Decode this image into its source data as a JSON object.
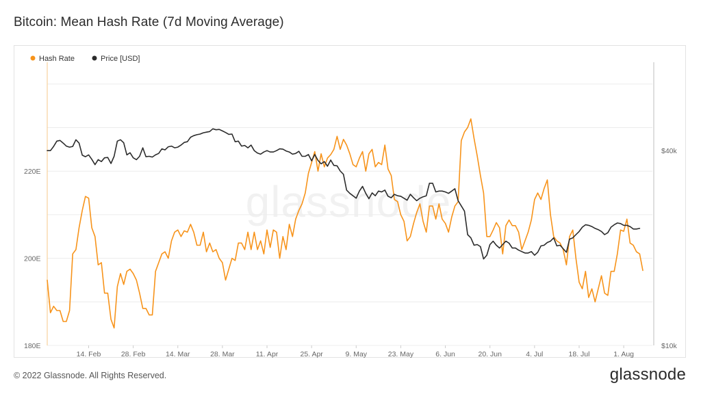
{
  "page": {
    "footer": "© 2022 Glassnode. All Rights Reserved.",
    "brand": "glassnode",
    "watermark": "glassnode"
  },
  "colors": {
    "hash_rate": "#f7931a",
    "price": "#2b2b2b",
    "grid": "#ececec",
    "axis_text": "#666666"
  },
  "chart_data": {
    "type": "line",
    "title": "Bitcoin: Mean Hash Rate (7d Moving Average)",
    "x_ticks": [
      "14. Feb",
      "28. Feb",
      "14. Mar",
      "28. Mar",
      "11. Apr",
      "25. Apr",
      "9. May",
      "23. May",
      "6. Jun",
      "20. Jun",
      "4. Jul",
      "18. Jul",
      "1. Aug"
    ],
    "x_start": "2022-02-01",
    "x_days": 190,
    "x_tick_offsets_days": [
      13,
      27,
      41,
      55,
      69,
      83,
      97,
      111,
      125,
      139,
      153,
      167,
      181
    ],
    "y_left": {
      "label": "Hash Rate",
      "ticks": [
        180,
        200,
        220
      ],
      "tick_labels": [
        "180E",
        "200E",
        "220E"
      ],
      "range": [
        180,
        245
      ]
    },
    "y_right": {
      "label": "Price [USD]",
      "ticks": [
        10000,
        40000
      ],
      "tick_labels": [
        "$10k",
        "$40k"
      ],
      "scale": "log",
      "range": [
        10000,
        75000
      ]
    },
    "legend": {
      "position": "top-left",
      "entries": [
        "Hash Rate",
        "Price [USD]"
      ]
    },
    "series": [
      {
        "name": "Hash Rate",
        "axis": "left",
        "step_days": 1,
        "values": [
          195,
          187.5,
          189,
          188,
          188,
          185.5,
          185.5,
          188,
          201,
          202,
          207,
          211,
          214.2,
          213.8,
          207,
          205,
          198.5,
          199,
          192,
          192,
          186,
          184,
          193.5,
          196.5,
          194,
          197,
          197.5,
          196.5,
          195,
          192,
          188.5,
          188.5,
          187,
          187,
          197,
          199,
          201,
          201.5,
          200,
          204,
          206,
          206.5,
          205,
          206.3,
          206,
          207.8,
          206,
          203,
          203,
          206,
          201.5,
          203.5,
          201.5,
          202,
          200,
          199,
          195,
          197.5,
          200,
          199.5,
          203.5,
          203.5,
          202,
          206,
          202,
          206,
          202,
          204,
          201,
          206.5,
          202.5,
          206.5,
          206,
          200,
          205,
          202,
          207.8,
          205,
          209,
          211,
          212.5,
          215,
          219.5,
          222,
          224.5,
          220,
          224,
          221,
          223,
          223.8,
          225,
          228,
          225,
          227.3,
          226,
          224,
          221.5,
          221,
          223,
          224.5,
          220,
          224,
          225,
          221,
          222,
          221.5,
          226,
          220.5,
          219,
          213.5,
          213,
          210,
          208.5,
          204,
          205,
          208,
          210.5,
          212.5,
          208.5,
          206,
          212,
          212,
          209,
          212.5,
          209,
          208,
          206,
          209.5,
          212,
          213,
          227,
          229,
          230,
          232,
          227.5,
          223.5,
          219,
          215,
          205,
          205,
          206.5,
          208.2,
          207,
          201,
          207.5,
          208.8,
          207.5,
          207.5,
          206,
          202,
          204,
          206,
          208.8,
          213.5,
          215,
          213.5,
          216,
          218,
          210,
          205,
          204,
          203.5,
          202,
          198.5,
          205,
          206.5,
          200,
          194.5,
          193,
          197,
          191,
          193,
          190,
          193,
          196,
          192,
          191.5,
          197,
          197,
          201,
          206.5,
          206.2,
          209,
          203.5,
          203,
          201.5,
          201,
          197.2
        ]
      },
      {
        "name": "Price [USD]",
        "axis": "right",
        "step_days": 1,
        "values": [
          40000,
          40000,
          41200,
          42800,
          43000,
          42200,
          41300,
          41000,
          41200,
          43200,
          42200,
          38700,
          38300,
          38800,
          37600,
          36200,
          37500,
          37000,
          38000,
          38100,
          36500,
          38400,
          42800,
          43200,
          42300,
          38800,
          39400,
          38000,
          37500,
          38400,
          40800,
          38300,
          38400,
          38200,
          38800,
          39200,
          40500,
          40200,
          41100,
          41300,
          40800,
          41000,
          41600,
          42400,
          42600,
          44000,
          44500,
          44800,
          45000,
          45400,
          45600,
          45800,
          46700,
          46400,
          46500,
          46000,
          45500,
          44900,
          45000,
          42600,
          42800,
          41300,
          41500,
          40800,
          41600,
          40000,
          39300,
          39000,
          39600,
          40000,
          39600,
          39600,
          40000,
          40500,
          40400,
          39900,
          39600,
          39000,
          39200,
          39800,
          38400,
          38400,
          38900,
          37200,
          38900,
          37300,
          36400,
          37000,
          35800,
          37400,
          36000,
          35900,
          34600,
          33800,
          30200,
          29500,
          29000,
          28500,
          30000,
          31000,
          29500,
          28400,
          29600,
          29000,
          30000,
          29800,
          30200,
          28900,
          28600,
          29300,
          29000,
          28900,
          28500,
          28100,
          29300,
          28600,
          28000,
          28500,
          28800,
          29000,
          31700,
          31700,
          29800,
          30000,
          30000,
          29800,
          29500,
          30000,
          30500,
          28000,
          27000,
          26000,
          22000,
          21500,
          20400,
          20500,
          20200,
          18500,
          19000,
          20500,
          21000,
          20400,
          20000,
          20500,
          21000,
          20700,
          20000,
          20000,
          19700,
          19500,
          19300,
          19300,
          19500,
          19000,
          19400,
          20300,
          20400,
          20800,
          21000,
          21500,
          20300,
          20400,
          19900,
          19400,
          21300,
          21500,
          22000,
          22500,
          23200,
          23600,
          23500,
          23300,
          23000,
          22800,
          22500,
          22000,
          22300,
          23200,
          23600,
          23900,
          23800,
          23500,
          23500,
          23300,
          22900,
          22900,
          23000
        ]
      }
    ]
  }
}
